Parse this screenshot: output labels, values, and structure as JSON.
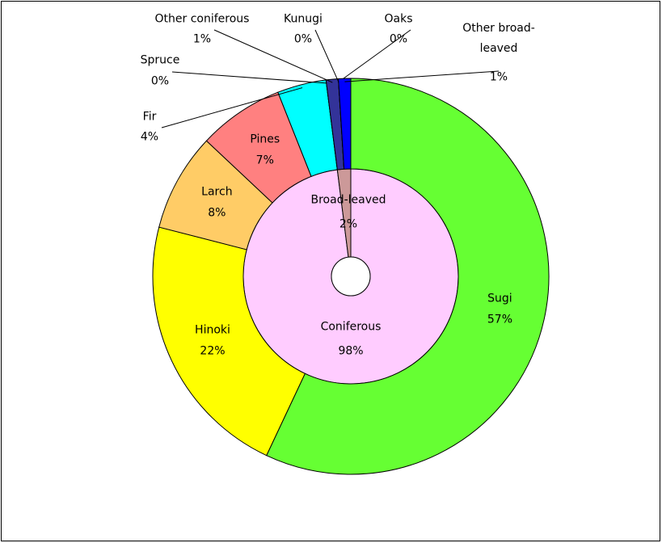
{
  "chart_data": {
    "type": "sunburst",
    "rings": [
      {
        "categories": [
          "Coniferous",
          "Broad-leaved"
        ],
        "values": [
          98,
          2
        ],
        "value_labels": [
          "98%",
          "2%"
        ],
        "colors": [
          "#ffccff",
          "#cc9999"
        ]
      },
      {
        "categories": [
          "Sugi",
          "Hinoki",
          "Larch",
          "Pines",
          "Fir",
          "Spruce",
          "Other coniferous",
          "Kunugi",
          "Oaks",
          "Other broad-leaved"
        ],
        "values": [
          57,
          22,
          8,
          7,
          4,
          0,
          1,
          0,
          0,
          1
        ],
        "value_labels": [
          "57%",
          "22%",
          "8%",
          "7%",
          "4%",
          "0%",
          "1%",
          "0%",
          "0%",
          "1%"
        ],
        "colors": [
          "#66ff33",
          "#ffff00",
          "#ffcc66",
          "#ff8080",
          "#00ffff",
          "#000080",
          "#333399",
          "#3366ff",
          "#0066cc",
          "#0000ff"
        ]
      }
    ]
  }
}
